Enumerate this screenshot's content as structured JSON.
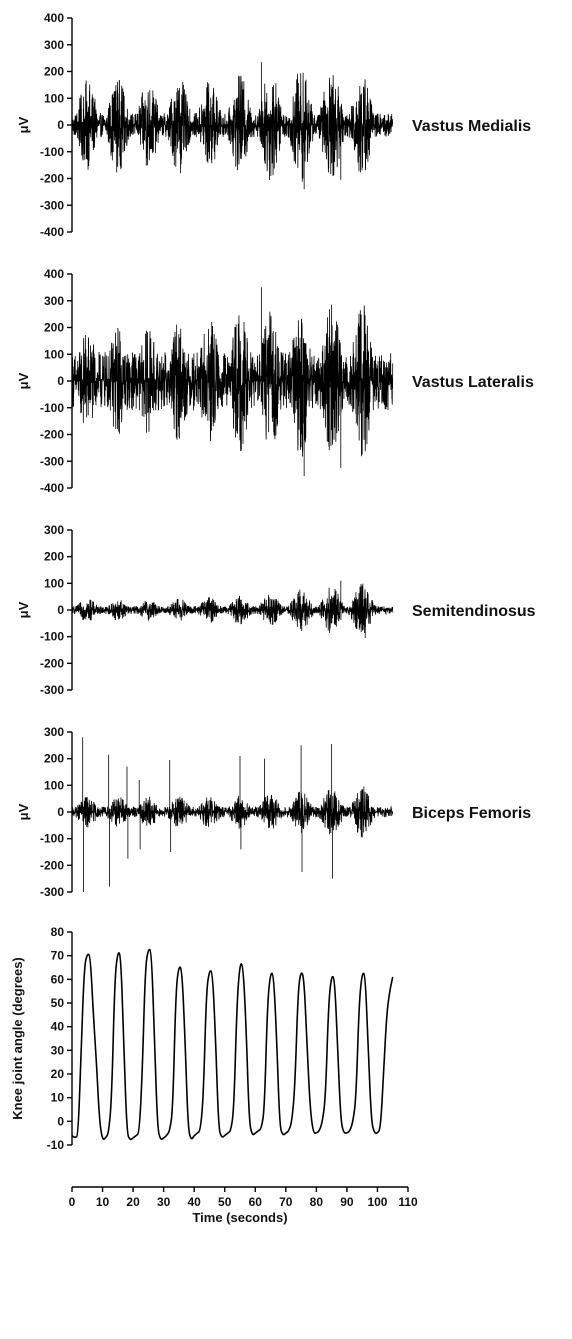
{
  "chart_data": [
    {
      "type": "line",
      "muscle_label": "Vastus Medialis",
      "ylabel": "μV",
      "ylim": [
        -400,
        400
      ],
      "yticks": [
        400,
        300,
        200,
        100,
        0,
        -100,
        -200,
        -300,
        -400
      ],
      "xlim": [
        0,
        105
      ],
      "peak_times": [
        5,
        15,
        25,
        35,
        45,
        55,
        65,
        75,
        85,
        95
      ],
      "burst_peaks": [
        170,
        180,
        170,
        185,
        175,
        190,
        215,
        220,
        215,
        210
      ],
      "baseline_amplitude": 45,
      "spikes": [
        [
          76,
          -240
        ],
        [
          62,
          235
        ],
        [
          88,
          -205
        ]
      ],
      "color": "#000000"
    },
    {
      "type": "line",
      "muscle_label": "Vastus Lateralis",
      "ylabel": "μV",
      "ylim": [
        -400,
        400
      ],
      "yticks": [
        400,
        300,
        200,
        100,
        0,
        -100,
        -200,
        -300,
        -400
      ],
      "xlim": [
        0,
        105
      ],
      "peak_times": [
        5,
        15,
        25,
        35,
        45,
        55,
        65,
        75,
        85,
        95
      ],
      "burst_peaks": [
        200,
        215,
        200,
        230,
        250,
        265,
        270,
        290,
        300,
        310
      ],
      "baseline_amplitude": 110,
      "spikes": [
        [
          76,
          -355
        ],
        [
          62,
          350
        ],
        [
          88,
          -325
        ]
      ],
      "color": "#000000"
    },
    {
      "type": "line",
      "muscle_label": "Semitendinosus",
      "ylabel": "μV",
      "ylim": [
        -300,
        300
      ],
      "yticks": [
        300,
        200,
        100,
        0,
        -100,
        -200,
        -300
      ],
      "xlim": [
        0,
        105
      ],
      "peak_times": [
        5,
        15,
        25,
        35,
        45,
        55,
        65,
        75,
        85,
        95
      ],
      "burst_peaks": [
        45,
        40,
        40,
        45,
        50,
        55,
        60,
        80,
        90,
        100
      ],
      "baseline_amplitude": 15,
      "spikes": [
        [
          88,
          110
        ],
        [
          96,
          -105
        ]
      ],
      "color": "#000000"
    },
    {
      "type": "line",
      "muscle_label": "Biceps Femoris",
      "ylabel": "μV",
      "ylim": [
        -300,
        300
      ],
      "yticks": [
        300,
        200,
        100,
        0,
        -100,
        -200,
        -300
      ],
      "xlim": [
        0,
        105
      ],
      "peak_times": [
        5,
        15,
        25,
        35,
        45,
        55,
        65,
        75,
        85,
        95
      ],
      "burst_peaks": [
        60,
        60,
        60,
        65,
        65,
        65,
        75,
        80,
        95,
        100
      ],
      "baseline_amplitude": 20,
      "spikes": [
        [
          3.5,
          280
        ],
        [
          3.8,
          -300
        ],
        [
          12,
          215
        ],
        [
          12.3,
          -280
        ],
        [
          18,
          170
        ],
        [
          18.3,
          -175
        ],
        [
          22,
          120
        ],
        [
          22.3,
          -140
        ],
        [
          32,
          195
        ],
        [
          32.3,
          -150
        ],
        [
          55,
          210
        ],
        [
          55.3,
          -140
        ],
        [
          63,
          200
        ],
        [
          75,
          250
        ],
        [
          75.3,
          -225
        ],
        [
          85,
          255
        ],
        [
          85.3,
          -250
        ]
      ],
      "color": "#000000"
    },
    {
      "type": "line",
      "ylabel": "Knee joint angle (degrees)",
      "xlabel": "Time (seconds)",
      "ylim": [
        -10,
        80
      ],
      "yticks": [
        80,
        70,
        60,
        50,
        40,
        30,
        20,
        10,
        0,
        -10
      ],
      "xlim": [
        0,
        110
      ],
      "xticks": [
        0,
        10,
        20,
        30,
        40,
        50,
        60,
        70,
        80,
        90,
        100,
        110
      ],
      "series": [
        {
          "x": [
            0,
            1,
            2,
            3,
            4,
            5,
            6,
            7,
            8,
            9,
            10,
            11,
            12,
            13,
            14,
            15,
            16,
            17,
            18,
            19,
            20,
            21,
            22,
            23,
            24,
            25,
            26,
            27,
            28,
            29,
            30,
            31,
            32,
            33,
            34,
            35,
            36,
            37,
            38,
            39,
            40,
            41,
            42,
            43,
            44,
            45,
            46,
            47,
            48,
            49,
            50,
            51,
            52,
            53,
            54,
            55,
            56,
            57,
            58,
            59,
            60,
            61,
            62,
            63,
            64,
            65,
            66,
            67,
            68,
            69,
            70,
            71,
            72,
            73,
            74,
            75,
            76,
            77,
            78,
            79,
            80,
            81,
            82,
            83,
            84,
            85,
            86,
            87,
            88,
            89,
            90,
            91,
            92,
            93,
            94,
            95,
            96,
            97,
            98,
            99,
            100,
            101,
            102,
            103,
            104,
            105
          ],
          "y": [
            -6,
            -7,
            -6,
            30,
            65,
            71,
            70,
            45,
            25,
            0,
            -8,
            -7,
            -5,
            10,
            60,
            72,
            70,
            30,
            -5,
            -8,
            -7,
            -6,
            -5,
            20,
            65,
            73,
            72,
            35,
            -3,
            -8,
            -7,
            -6,
            -4,
            5,
            55,
            66,
            64,
            35,
            -3,
            -8,
            -6,
            -5,
            -4,
            10,
            55,
            64,
            63,
            35,
            -3,
            -7,
            -6,
            -5,
            -4,
            5,
            50,
            67,
            66,
            40,
            0,
            -6,
            -5,
            -4,
            -3,
            5,
            50,
            63,
            62,
            35,
            -2,
            -6,
            -5,
            -4,
            0,
            15,
            55,
            64,
            60,
            30,
            5,
            -5,
            -5,
            -4,
            0,
            10,
            50,
            62,
            60,
            30,
            0,
            -5,
            -5,
            -4,
            0,
            10,
            50,
            63,
            62,
            30,
            0,
            -5,
            -5,
            -3,
            20,
            45,
            55,
            61
          ],
          "color": "#000000"
        }
      ]
    }
  ]
}
